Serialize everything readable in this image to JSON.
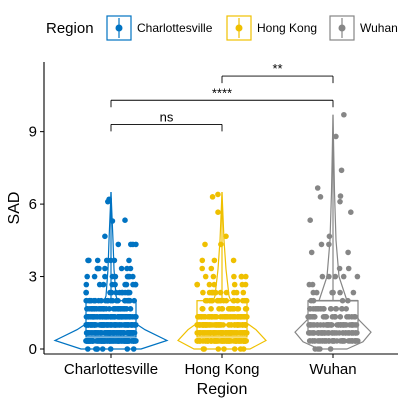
{
  "chart_data": {
    "type": "violin+box+jitter",
    "xlabel": "Region",
    "ylabel": "SAD",
    "ylim": [
      0,
      11.5
    ],
    "yticks": [
      0,
      3,
      6,
      9
    ],
    "grid": false,
    "legend": {
      "title": "Region",
      "position": "top"
    },
    "colors": {
      "Charlottesville": "#0073C2",
      "Hong Kong": "#EFC000",
      "Wuhan": "#868686"
    },
    "categories": [
      "Charlottesville",
      "Hong Kong",
      "Wuhan"
    ],
    "series": [
      {
        "name": "Charlottesville",
        "box": {
          "min": 0,
          "q1": 0.5,
          "median": 1.0,
          "q3": 2.0,
          "max": 6.5
        },
        "violin_max": 6.5,
        "n_points": 520
      },
      {
        "name": "Hong Kong",
        "box": {
          "min": 0,
          "q1": 0.5,
          "median": 1.0,
          "q3": 2.0,
          "max": 6.5
        },
        "violin_max": 6.5,
        "n_points": 400
      },
      {
        "name": "Wuhan",
        "box": {
          "min": 0,
          "q1": 0.7,
          "median": 2.0,
          "q3": 2.0,
          "max": 9.7
        },
        "violin_max": 9.7,
        "n_points": 200
      }
    ],
    "comparisons": [
      {
        "group1": "Charlottesville",
        "group2": "Hong Kong",
        "label": "ns",
        "y": 9.3
      },
      {
        "group1": "Charlottesville",
        "group2": "Wuhan",
        "label": "****",
        "y": 10.3
      },
      {
        "group1": "Hong Kong",
        "group2": "Wuhan",
        "label": "**",
        "y": 11.3
      }
    ]
  }
}
